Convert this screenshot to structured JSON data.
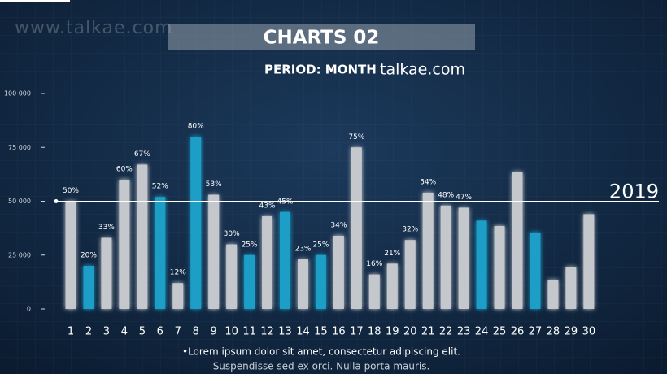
{
  "watermark": "www.talkae.com",
  "chart_data": {
    "type": "bar",
    "title": "CHARTS 02",
    "subtitle": "PERIOD: MONTH",
    "site": "talkae.com",
    "categories": [
      "1",
      "2",
      "3",
      "4",
      "5",
      "6",
      "7",
      "8",
      "9",
      "10",
      "11",
      "12",
      "13",
      "14",
      "15",
      "16",
      "17",
      "18",
      "19",
      "20",
      "21",
      "22",
      "23",
      "24",
      "25",
      "26",
      "27",
      "28",
      "29",
      "30"
    ],
    "values": [
      50000,
      20000,
      33000,
      60000,
      67000,
      52000,
      12000,
      80000,
      53000,
      30000,
      25000,
      43000,
      45000,
      23000,
      25000,
      34000,
      75000,
      16000,
      21000,
      32000,
      54000,
      48000,
      47000,
      41000,
      38500,
      63500,
      35500,
      13500,
      19500,
      44000
    ],
    "value_labels": [
      "50%",
      "20%",
      "33%",
      "60%",
      "67%",
      "52%",
      "12%",
      "80%",
      "53%",
      "30%",
      "25%",
      "43%",
      "45%",
      "23%",
      "25%",
      "34%",
      "75%",
      "16%",
      "21%",
      "32%",
      "54%",
      "48%",
      "47%",
      null,
      null,
      null,
      null,
      null,
      null,
      null
    ],
    "colors": [
      "#c4c8cd",
      "#1e9ec6",
      "#c4c8cd",
      "#c4c8cd",
      "#c4c8cd",
      "#1e9ec6",
      "#c4c8cd",
      "#1e9ec6",
      "#c4c8cd",
      "#c4c8cd",
      "#1e9ec6",
      "#c4c8cd",
      "#1e9ec6",
      "#c4c8cd",
      "#1e9ec6",
      "#c4c8cd",
      "#c4c8cd",
      "#c4c8cd",
      "#c4c8cd",
      "#c4c8cd",
      "#c4c8cd",
      "#c4c8cd",
      "#c4c8cd",
      "#1e9ec6",
      "#c4c8cd",
      "#c4c8cd",
      "#1e9ec6",
      "#c4c8cd",
      "#c4c8cd",
      "#c4c8cd"
    ],
    "ylim": [
      0,
      100000
    ],
    "yticks": [
      0,
      {
        "value": 25000,
        "label": "25 000"
      },
      {
        "value": 50000,
        "label": "50 000"
      },
      {
        "value": 75000,
        "label": "75 000"
      },
      {
        "value": 100000,
        "label": "100 000"
      }
    ],
    "reference_line": {
      "value": 50000,
      "label": "2019"
    },
    "footnotes": [
      "•Lorem ipsum dolor sit amet, consectetur adipiscing elit.",
      "Suspendisse sed ex orci. Nulla porta mauris."
    ]
  }
}
